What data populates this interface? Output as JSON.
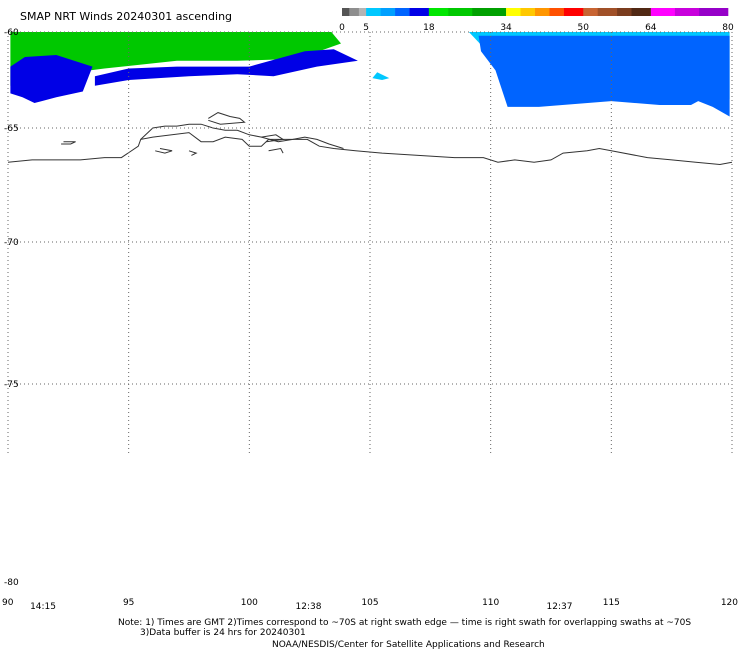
{
  "title": "SMAP NRT Winds 20240301 ascending",
  "colorbar": {
    "tick_labels": [
      "0",
      "5",
      "18",
      "34",
      "50",
      "64",
      "80"
    ],
    "tick_values": [
      0,
      5,
      18,
      34,
      50,
      64,
      80
    ],
    "segments": [
      {
        "from": 0,
        "to": 1.5,
        "color": "#555555"
      },
      {
        "from": 1.5,
        "to": 3.5,
        "color": "#8e8e8e"
      },
      {
        "from": 3.5,
        "to": 5,
        "color": "#b4b4b4"
      },
      {
        "from": 5,
        "to": 8,
        "color": "#00c8ff"
      },
      {
        "from": 8,
        "to": 11,
        "color": "#00a0ff"
      },
      {
        "from": 11,
        "to": 14,
        "color": "#0064ff"
      },
      {
        "from": 14,
        "to": 18,
        "color": "#0000e6"
      },
      {
        "from": 18,
        "to": 22,
        "color": "#00e600"
      },
      {
        "from": 22,
        "to": 27,
        "color": "#00c800"
      },
      {
        "from": 27,
        "to": 34,
        "color": "#00a000"
      },
      {
        "from": 34,
        "to": 37,
        "color": "#ffff00"
      },
      {
        "from": 37,
        "to": 40,
        "color": "#ffc800"
      },
      {
        "from": 40,
        "to": 43,
        "color": "#ff9600"
      },
      {
        "from": 43,
        "to": 46,
        "color": "#ff5000"
      },
      {
        "from": 46,
        "to": 50,
        "color": "#ff0000"
      },
      {
        "from": 50,
        "to": 53,
        "color": "#c86432"
      },
      {
        "from": 53,
        "to": 57,
        "color": "#a05028"
      },
      {
        "from": 57,
        "to": 60,
        "color": "#7a3c1e"
      },
      {
        "from": 60,
        "to": 64,
        "color": "#502814"
      },
      {
        "from": 64,
        "to": 69,
        "color": "#ff00ff"
      },
      {
        "from": 69,
        "to": 74,
        "color": "#c800dc"
      },
      {
        "from": 74,
        "to": 80,
        "color": "#9600c8"
      }
    ]
  },
  "chart_data": {
    "type": "map",
    "lon_range": [
      90,
      120
    ],
    "lat_range": [
      -80,
      -60
    ],
    "lon_ticks": [
      90,
      95,
      100,
      105,
      110,
      115,
      120
    ],
    "lon_tick_labels": [
      "90",
      "95",
      "100",
      "105",
      "110",
      "115",
      "120"
    ],
    "lat_ticks": [
      -60,
      -65,
      -70,
      -75,
      -80
    ],
    "lat_tick_labels": [
      "-60",
      "-65",
      "-70",
      "-75",
      "-80"
    ],
    "grid": true,
    "swath_times": [
      {
        "lon": 90.5,
        "label": "14:15"
      },
      {
        "lon": 101.5,
        "label": "12:38"
      },
      {
        "lon": 111.9,
        "label": "12:37"
      }
    ],
    "wind_fields": [
      {
        "name": "west-green",
        "color": "#00c800",
        "lonlat": [
          [
            90.1,
            -60.0
          ],
          [
            103.4,
            -60.0
          ],
          [
            103.8,
            -60.6
          ],
          [
            102.0,
            -61.4
          ],
          [
            99.5,
            -61.5
          ],
          [
            97.0,
            -61.5
          ],
          [
            94.0,
            -61.9
          ],
          [
            91.5,
            -62.3
          ],
          [
            90.1,
            -62.8
          ]
        ]
      },
      {
        "name": "west-blue-low",
        "color": "#0000e6",
        "lonlat": [
          [
            90.1,
            -61.8
          ],
          [
            90.7,
            -61.3
          ],
          [
            92.0,
            -61.2
          ],
          [
            93.5,
            -61.8
          ],
          [
            93.1,
            -63.1
          ],
          [
            92.0,
            -63.4
          ],
          [
            91.4,
            -63.6
          ],
          [
            91.1,
            -63.7
          ],
          [
            90.6,
            -63.4
          ],
          [
            90.1,
            -63.2
          ]
        ]
      },
      {
        "name": "mid-blue",
        "color": "#0000e6",
        "lonlat": [
          [
            93.6,
            -62.3
          ],
          [
            95.0,
            -61.9
          ],
          [
            97.0,
            -61.8
          ],
          [
            100.0,
            -61.8
          ],
          [
            102.3,
            -61.0
          ],
          [
            103.5,
            -60.9
          ],
          [
            104.5,
            -61.5
          ],
          [
            102.8,
            -61.8
          ],
          [
            101.0,
            -62.3
          ],
          [
            99.5,
            -62.2
          ],
          [
            97.5,
            -62.3
          ],
          [
            95.0,
            -62.5
          ],
          [
            93.6,
            -62.8
          ]
        ]
      },
      {
        "name": "small-cyan",
        "color": "#00c8ff",
        "lonlat": [
          [
            105.3,
            -62.1
          ],
          [
            105.8,
            -62.4
          ],
          [
            105.5,
            -62.5
          ],
          [
            105.1,
            -62.4
          ]
        ]
      },
      {
        "name": "east-cyan",
        "color": "#00c8ff",
        "lonlat": [
          [
            109.1,
            -60.0
          ],
          [
            119.9,
            -60.0
          ],
          [
            119.9,
            -63.5
          ],
          [
            117.0,
            -63.0
          ],
          [
            114.0,
            -63.5
          ],
          [
            111.0,
            -63.6
          ],
          [
            110.6,
            -62.0
          ]
        ]
      },
      {
        "name": "east-blue",
        "color": "#0064ff",
        "lonlat": [
          [
            109.5,
            -60.2
          ],
          [
            119.9,
            -60.2
          ],
          [
            119.9,
            -64.4
          ],
          [
            119.2,
            -63.9
          ],
          [
            118.6,
            -63.6
          ],
          [
            118.3,
            -63.8
          ],
          [
            117.0,
            -63.8
          ],
          [
            115.0,
            -63.6
          ],
          [
            112.0,
            -63.9
          ],
          [
            110.7,
            -63.9
          ],
          [
            110.2,
            -62.0
          ],
          [
            109.6,
            -61.0
          ]
        ]
      }
    ],
    "coastlines": [
      {
        "name": "main-coast",
        "lonlat": [
          [
            90.0,
            -66.5
          ],
          [
            91.0,
            -66.4
          ],
          [
            92.0,
            -66.4
          ],
          [
            93.0,
            -66.4
          ],
          [
            94.0,
            -66.3
          ],
          [
            94.7,
            -66.3
          ],
          [
            95.4,
            -65.8
          ],
          [
            95.5,
            -65.5
          ],
          [
            96.0,
            -65.4
          ],
          [
            97.5,
            -65.2
          ],
          [
            98.0,
            -65.6
          ],
          [
            98.5,
            -65.6
          ],
          [
            99.0,
            -65.4
          ],
          [
            99.7,
            -65.5
          ],
          [
            100.0,
            -65.8
          ],
          [
            100.5,
            -65.8
          ],
          [
            100.8,
            -65.5
          ],
          [
            102.4,
            -65.5
          ],
          [
            102.9,
            -65.8
          ],
          [
            103.5,
            -65.9
          ],
          [
            104.4,
            -66.0
          ],
          [
            105.5,
            -66.1
          ],
          [
            107.0,
            -66.2
          ],
          [
            108.5,
            -66.3
          ],
          [
            109.7,
            -66.3
          ],
          [
            110.3,
            -66.5
          ],
          [
            111.0,
            -66.4
          ],
          [
            111.8,
            -66.5
          ],
          [
            112.5,
            -66.4
          ],
          [
            113.0,
            -66.1
          ],
          [
            114.0,
            -66.0
          ],
          [
            114.5,
            -65.9
          ],
          [
            115.0,
            -66.0
          ],
          [
            116.5,
            -66.3
          ],
          [
            117.5,
            -66.4
          ],
          [
            118.5,
            -66.5
          ],
          [
            119.5,
            -66.6
          ],
          [
            120.0,
            -66.5
          ]
        ]
      },
      {
        "name": "shackleton",
        "lonlat": [
          [
            95.5,
            -65.5
          ],
          [
            96.0,
            -65.0
          ],
          [
            96.5,
            -64.9
          ],
          [
            97.0,
            -64.9
          ],
          [
            97.5,
            -64.8
          ],
          [
            98.0,
            -64.8
          ],
          [
            98.5,
            -65.0
          ],
          [
            99.0,
            -65.1
          ],
          [
            99.5,
            -65.1
          ],
          [
            100.0,
            -65.3
          ],
          [
            100.5,
            -65.4
          ],
          [
            101.2,
            -65.6
          ],
          [
            101.8,
            -65.5
          ],
          [
            102.3,
            -65.4
          ],
          [
            102.8,
            -65.5
          ],
          [
            103.3,
            -65.7
          ],
          [
            103.9,
            -65.9
          ]
        ]
      },
      {
        "name": "shelf-north",
        "lonlat": [
          [
            98.3,
            -64.5
          ],
          [
            98.7,
            -64.2
          ],
          [
            99.2,
            -64.4
          ],
          [
            99.6,
            -64.5
          ],
          [
            99.8,
            -64.7
          ],
          [
            98.8,
            -64.8
          ],
          [
            98.3,
            -64.6
          ]
        ]
      },
      {
        "name": "island-1",
        "lonlat": [
          [
            92.3,
            -65.6
          ],
          [
            92.8,
            -65.6
          ],
          [
            92.6,
            -65.7
          ],
          [
            92.2,
            -65.7
          ]
        ]
      },
      {
        "name": "island-2",
        "lonlat": [
          [
            96.3,
            -65.9
          ],
          [
            96.8,
            -66.0
          ],
          [
            96.5,
            -66.1
          ],
          [
            96.1,
            -66.0
          ]
        ]
      },
      {
        "name": "island-3",
        "lonlat": [
          [
            97.5,
            -66.0
          ],
          [
            97.8,
            -66.1
          ],
          [
            97.6,
            -66.2
          ]
        ]
      },
      {
        "name": "island-4",
        "lonlat": [
          [
            100.8,
            -66.0
          ],
          [
            101.3,
            -65.9
          ],
          [
            101.4,
            -66.1
          ]
        ]
      },
      {
        "name": "island-5",
        "lonlat": [
          [
            100.5,
            -65.4
          ],
          [
            101.1,
            -65.3
          ],
          [
            101.4,
            -65.5
          ],
          [
            100.7,
            -65.6
          ]
        ]
      }
    ]
  },
  "footer": {
    "note_line1": "Note: 1) Times are GMT 2)Times correspond to ~70S at right swath edge — time is right swath for overlapping swaths at ~70S",
    "note_line2": "3)Data buffer is 24 hrs for 20240301",
    "credit": "NOAA/NESDIS/Center for Satellite Applications and Research"
  }
}
